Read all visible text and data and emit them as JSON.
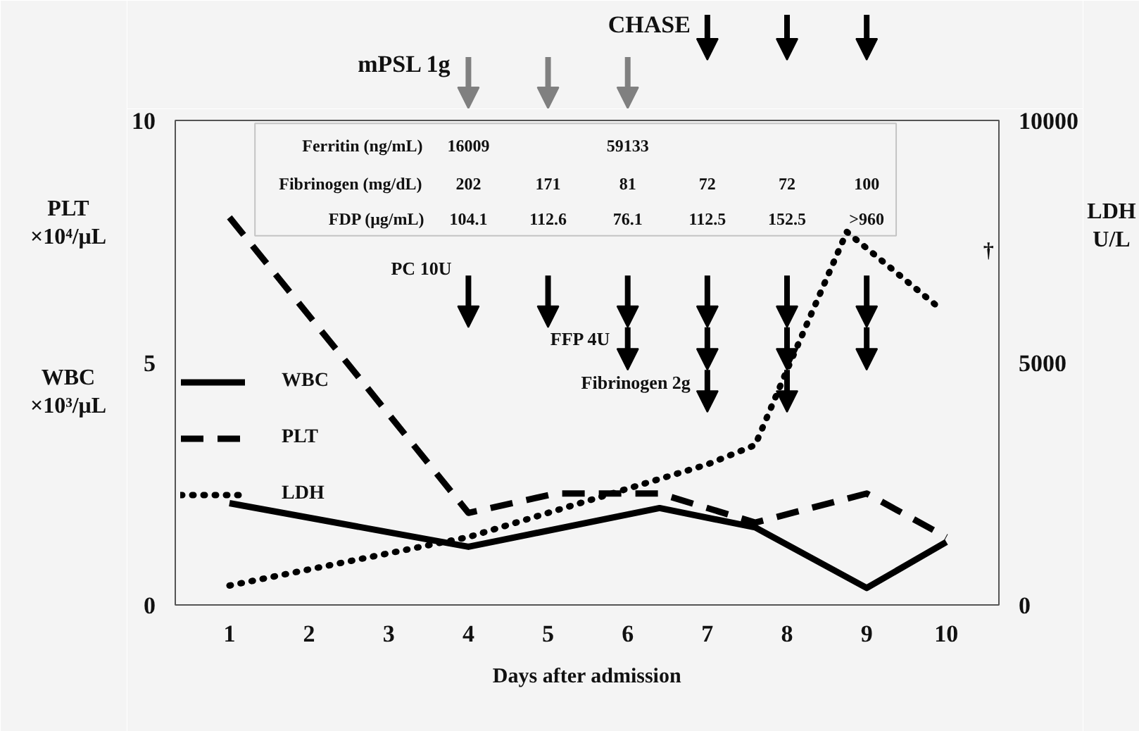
{
  "chart_data": {
    "type": "line",
    "xlabel": "Days after admission",
    "ylabel": "PLT ×10⁴/μL",
    "y2label": "LDH U/L",
    "xlim": [
      0.32,
      10.66
    ],
    "xticks": [
      1,
      2,
      3,
      4,
      5,
      6,
      7,
      8,
      9,
      10
    ],
    "ylim": [
      0,
      10
    ],
    "yticks": [
      0,
      5,
      10
    ],
    "y2lim": [
      0,
      10000
    ],
    "y2ticks": [
      0,
      5000,
      10000
    ],
    "grid": false,
    "legend": "left",
    "marker": "none",
    "series": [
      {
        "name": "WBC",
        "color": "#000000",
        "line_style": "solid",
        "x": [
          1,
          4,
          6.4,
          7.6,
          9,
          10
        ],
        "values": [
          2.1,
          1.2,
          2.0,
          1.6,
          0.35,
          1.3
        ]
      },
      {
        "name": "PLT",
        "color": "#000000",
        "line_style": "dashed",
        "x": [
          1,
          4,
          5.1,
          6.4,
          7.6,
          9,
          10
        ],
        "values": [
          8.0,
          1.9,
          2.3,
          2.3,
          1.7,
          2.3,
          1.4
        ]
      },
      {
        "name": "LDH",
        "color": "#000000",
        "line_style": "dotted",
        "axis": "y2",
        "x": [
          1,
          4,
          5,
          6,
          7,
          7.6,
          8,
          8.75,
          9.86
        ],
        "values": [
          400,
          1400,
          1900,
          2400,
          2900,
          3300,
          4850,
          7700,
          6200
        ]
      }
    ],
    "annotations": [
      "WBC ×10³/μL",
      "mPSL 1g",
      "CHASE",
      "PC 10U",
      "FFP 4U",
      "Fibrinogen 2g",
      "Ferritin (ng/mL)",
      "16009",
      "59133",
      "Fibrinogen (mg/dL)",
      "202",
      "171",
      "81",
      "72",
      "72",
      "100",
      "FDP (μg/mL)",
      "104.1",
      "112.6",
      "76.1",
      "112.5",
      "152.5",
      ">960",
      "†"
    ]
  }
}
